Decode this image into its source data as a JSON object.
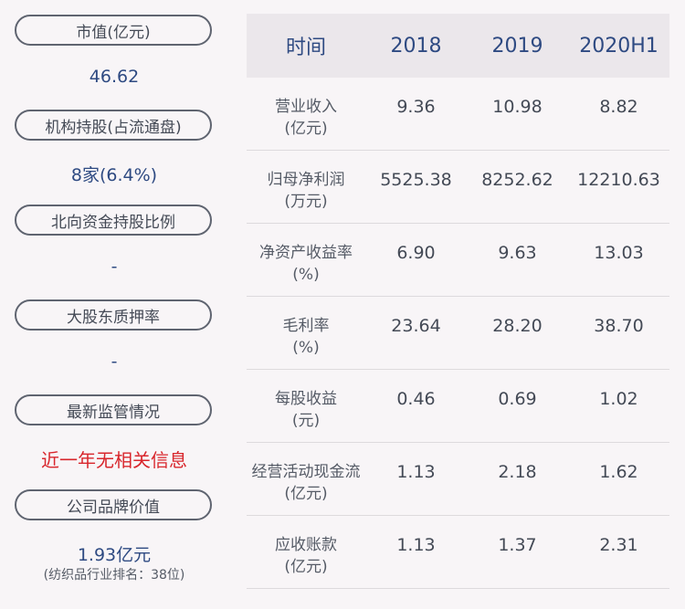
{
  "left": {
    "items": [
      {
        "label": "市值(亿元)",
        "value": "46.62"
      },
      {
        "label": "机构持股(占流通盘)",
        "value": "8家(6.4%)"
      },
      {
        "label": "北向资金持股比例",
        "value": "-"
      },
      {
        "label": "大股东质押率",
        "value": "-"
      },
      {
        "label": "最新监管情况",
        "value": "近一年无相关信息"
      },
      {
        "label": "公司品牌价值",
        "value": "1.93亿元",
        "note": "(纺织品行业排名：38位)"
      }
    ]
  },
  "table": {
    "headers": [
      "时间",
      "2018",
      "2019",
      "2020H1"
    ],
    "rows": [
      {
        "label": "营业收入",
        "unit": "(亿元)",
        "values": [
          "9.36",
          "10.98",
          "8.82"
        ]
      },
      {
        "label": "归母净利润",
        "unit": "(万元)",
        "values": [
          "5525.38",
          "8252.62",
          "12210.63"
        ]
      },
      {
        "label": "净资产收益率",
        "unit": "(%)",
        "values": [
          "6.90",
          "9.63",
          "13.03"
        ]
      },
      {
        "label": "毛利率",
        "unit": "(%)",
        "values": [
          "23.64",
          "28.20",
          "38.70"
        ]
      },
      {
        "label": "每股收益",
        "unit": "(元)",
        "values": [
          "0.46",
          "0.69",
          "1.02"
        ]
      },
      {
        "label": "经营活动现金流",
        "unit": "(亿元)",
        "values": [
          "1.13",
          "2.18",
          "1.62"
        ]
      },
      {
        "label": "应收账款",
        "unit": "(亿元)",
        "values": [
          "1.13",
          "1.37",
          "2.31"
        ]
      }
    ]
  },
  "colors": {
    "accent": "#2e4a82",
    "alert": "#d8262c",
    "header_bg": "#ebe7eb",
    "page_bg": "#f8f5f7"
  }
}
